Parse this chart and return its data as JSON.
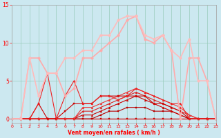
{
  "xlabel": "Vent moyen/en rafales ( km/h )",
  "bg_color": "#cce8f0",
  "grid_color": "#99ccbb",
  "xlim": [
    0,
    23
  ],
  "ylim": [
    -0.5,
    15
  ],
  "yticks": [
    0,
    5,
    10,
    15
  ],
  "xticks": [
    0,
    1,
    2,
    3,
    4,
    5,
    6,
    7,
    8,
    9,
    10,
    11,
    12,
    13,
    14,
    15,
    16,
    17,
    18,
    19,
    20,
    21,
    22,
    23
  ],
  "lines": [
    {
      "x": [
        0,
        1,
        2,
        3,
        4,
        5,
        6,
        7,
        8,
        9,
        10,
        11,
        12,
        13,
        14,
        15,
        16,
        17,
        18,
        19,
        20,
        21,
        22,
        23
      ],
      "y": [
        0,
        0,
        0,
        0,
        0,
        0,
        0,
        0,
        0,
        0,
        0,
        0,
        0,
        0,
        0,
        0,
        0,
        0,
        0,
        0,
        0,
        0,
        0,
        0
      ],
      "color": "#cc0000",
      "lw": 0.8,
      "marker": "s",
      "ms": 1.5,
      "alpha": 1.0
    },
    {
      "x": [
        0,
        1,
        2,
        3,
        4,
        5,
        6,
        7,
        8,
        9,
        10,
        11,
        12,
        13,
        14,
        15,
        16,
        17,
        18,
        19,
        20,
        21,
        22,
        23
      ],
      "y": [
        0,
        0,
        0,
        0,
        0,
        0,
        0,
        0,
        0,
        0,
        0.5,
        1,
        1,
        1.5,
        1.5,
        1.5,
        1,
        1,
        1,
        0.5,
        0,
        0,
        0,
        0
      ],
      "color": "#bb0000",
      "lw": 0.8,
      "marker": "s",
      "ms": 1.5,
      "alpha": 1.0
    },
    {
      "x": [
        0,
        1,
        2,
        3,
        4,
        5,
        6,
        7,
        8,
        9,
        10,
        11,
        12,
        13,
        14,
        15,
        16,
        17,
        18,
        19,
        20,
        21,
        22,
        23
      ],
      "y": [
        0,
        0,
        0,
        0,
        0,
        0,
        0,
        0,
        0.5,
        0.5,
        1,
        1.5,
        2,
        2.5,
        3,
        2.5,
        2,
        1.5,
        1,
        0.5,
        0,
        0,
        0,
        0
      ],
      "color": "#cc0000",
      "lw": 0.8,
      "marker": "^",
      "ms": 2,
      "alpha": 1.0
    },
    {
      "x": [
        0,
        1,
        2,
        3,
        4,
        5,
        6,
        7,
        8,
        9,
        10,
        11,
        12,
        13,
        14,
        15,
        16,
        17,
        18,
        19,
        20,
        21,
        22,
        23
      ],
      "y": [
        0,
        0,
        0,
        0,
        0,
        0,
        0,
        0,
        1,
        1,
        1.5,
        2,
        2.5,
        3,
        3.5,
        3,
        2.5,
        2,
        1.5,
        1,
        0.5,
        0,
        0,
        0
      ],
      "color": "#dd2222",
      "lw": 0.8,
      "marker": "^",
      "ms": 2,
      "alpha": 1.0
    },
    {
      "x": [
        0,
        1,
        2,
        3,
        4,
        5,
        6,
        7,
        8,
        9,
        10,
        11,
        12,
        13,
        14,
        15,
        16,
        17,
        18,
        19,
        20,
        21,
        22,
        23
      ],
      "y": [
        0,
        0,
        0,
        0,
        0,
        0,
        0,
        0,
        1.5,
        1.5,
        2,
        2.5,
        3,
        3.5,
        4,
        3.5,
        3,
        2.5,
        2,
        1.5,
        0.5,
        0,
        0,
        0
      ],
      "color": "#ee3333",
      "lw": 0.8,
      "marker": "^",
      "ms": 2,
      "alpha": 1.0
    },
    {
      "x": [
        0,
        1,
        2,
        3,
        4,
        5,
        6,
        7,
        8,
        9,
        10,
        11,
        12,
        13,
        14,
        15,
        16,
        17,
        18,
        19,
        20,
        21,
        22,
        23
      ],
      "y": [
        0,
        0,
        0,
        2,
        0,
        0,
        1,
        2,
        2,
        2,
        3,
        3,
        3,
        3,
        3,
        3,
        2,
        2,
        1.5,
        1,
        0,
        0,
        0,
        0
      ],
      "color": "#cc0000",
      "lw": 0.8,
      "marker": "s",
      "ms": 1.5,
      "alpha": 1.0
    },
    {
      "x": [
        0,
        1,
        2,
        3,
        4,
        5,
        6,
        7,
        8,
        9,
        10,
        11,
        12,
        13,
        14,
        15,
        16,
        17,
        18,
        19,
        20,
        21,
        22,
        23
      ],
      "y": [
        0,
        0,
        0,
        2,
        6,
        0,
        3,
        5,
        2,
        2,
        3,
        3,
        2.5,
        3,
        4,
        3.5,
        3,
        2.5,
        2,
        2,
        0,
        0,
        0,
        0
      ],
      "color": "#ee2222",
      "lw": 0.8,
      "marker": "^",
      "ms": 2,
      "alpha": 1.0
    },
    {
      "x": [
        0,
        1,
        2,
        3,
        4,
        5,
        6,
        7,
        8,
        9,
        10,
        11,
        12,
        13,
        14,
        15,
        16,
        17,
        18,
        19,
        20,
        21,
        22,
        23
      ],
      "y": [
        0,
        0,
        8,
        8,
        6,
        6,
        3,
        4,
        8,
        8,
        9,
        10,
        11,
        13,
        13.5,
        10.5,
        10,
        11,
        9,
        0,
        8,
        8,
        5,
        0
      ],
      "color": "#ffaaaa",
      "lw": 1.2,
      "marker": "o",
      "ms": 2.5,
      "alpha": 1.0
    },
    {
      "x": [
        0,
        1,
        2,
        3,
        4,
        5,
        6,
        7,
        8,
        9,
        10,
        11,
        12,
        13,
        14,
        15,
        16,
        17,
        18,
        19,
        20,
        21,
        22,
        23
      ],
      "y": [
        0,
        0,
        8,
        3,
        6,
        6,
        8,
        8,
        9,
        9,
        11,
        11,
        13,
        13.5,
        13.5,
        11,
        10.5,
        11,
        9,
        8,
        10.5,
        5,
        5,
        0
      ],
      "color": "#ffbbbb",
      "lw": 1.2,
      "marker": "o",
      "ms": 2.5,
      "alpha": 1.0
    }
  ]
}
